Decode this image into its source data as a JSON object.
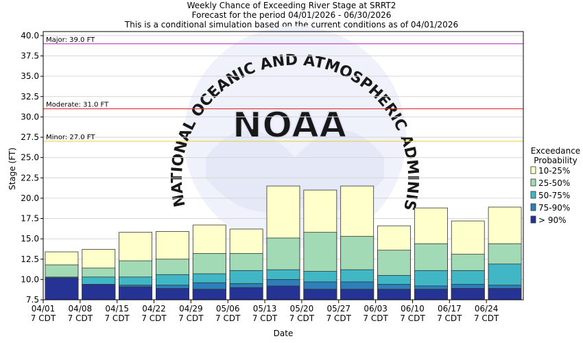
{
  "chart_data": {
    "type": "bar",
    "title": "Weekly Chance of Exceeding River Stage at SRRT2",
    "subtitle_1": "Forecast for the period 04/01/2026 - 06/30/2026",
    "subtitle_2": "This is a conditional simulation based on the current conditions as of 04/01/2026",
    "xlabel": "Date",
    "ylabel": "Stage (FT)",
    "ylim": [
      7.5,
      40.5
    ],
    "yticks": [
      "7.5",
      "10.0",
      "12.5",
      "15.0",
      "17.5",
      "20.0",
      "22.5",
      "25.0",
      "27.5",
      "30.0",
      "32.5",
      "35.0",
      "37.5",
      "40.0"
    ],
    "ytick_values": [
      7.5,
      10,
      12.5,
      15,
      17.5,
      20,
      22.5,
      25,
      27.5,
      30,
      32.5,
      35,
      37.5,
      40
    ],
    "categories": [
      "04/01",
      "04/08",
      "04/15",
      "04/22",
      "04/29",
      "05/06",
      "05/13",
      "05/20",
      "05/27",
      "06/03",
      "06/10",
      "06/17",
      "06/24"
    ],
    "category_sublabel": "7 CDT",
    "legend": {
      "title_line1": "Exceedance",
      "title_line2": "Probability",
      "placement": "right"
    },
    "series": [
      {
        "name": "10-25%",
        "color": "#ffffcc",
        "values": [
          13.4,
          13.7,
          15.8,
          15.9,
          16.7,
          16.2,
          21.5,
          21.0,
          21.5,
          16.6,
          18.8,
          17.2,
          18.9
        ]
      },
      {
        "name": "25-50%",
        "color": "#a1dab4",
        "values": [
          11.8,
          11.4,
          12.3,
          12.5,
          13.2,
          13.2,
          15.1,
          15.8,
          15.3,
          13.6,
          14.4,
          13.1,
          14.4
        ]
      },
      {
        "name": "50-75%",
        "color": "#41b6c4",
        "values": [
          10.3,
          10.3,
          10.3,
          10.6,
          10.7,
          11.1,
          11.2,
          11.0,
          11.2,
          10.5,
          11.1,
          11.1,
          11.9
        ]
      },
      {
        "name": "75-90%",
        "color": "#2c7fb8",
        "values": [
          10.2,
          9.4,
          9.3,
          9.3,
          9.6,
          9.5,
          10.0,
          9.7,
          9.7,
          9.4,
          9.2,
          9.4,
          9.3
        ]
      },
      {
        "name": "> 90%",
        "color": "#253494",
        "values": [
          10.2,
          9.4,
          9.1,
          8.9,
          8.8,
          9.0,
          9.2,
          8.8,
          8.8,
          8.8,
          8.8,
          8.9,
          8.9
        ]
      }
    ],
    "thresholds": [
      {
        "label": "Major: 39.0 FT",
        "value": 39.0,
        "color": "#cc44cc"
      },
      {
        "label": "Moderate: 31.0 FT",
        "value": 31.0,
        "color": "#e03030"
      },
      {
        "label": "Minor: 27.0 FT",
        "value": 27.0,
        "color": "#f0d040"
      }
    ],
    "watermark": {
      "arc_text": "NATIONAL OCEANIC AND ATMOSPHERIC ADMINISTRATION",
      "center_text": "NOAA"
    }
  }
}
